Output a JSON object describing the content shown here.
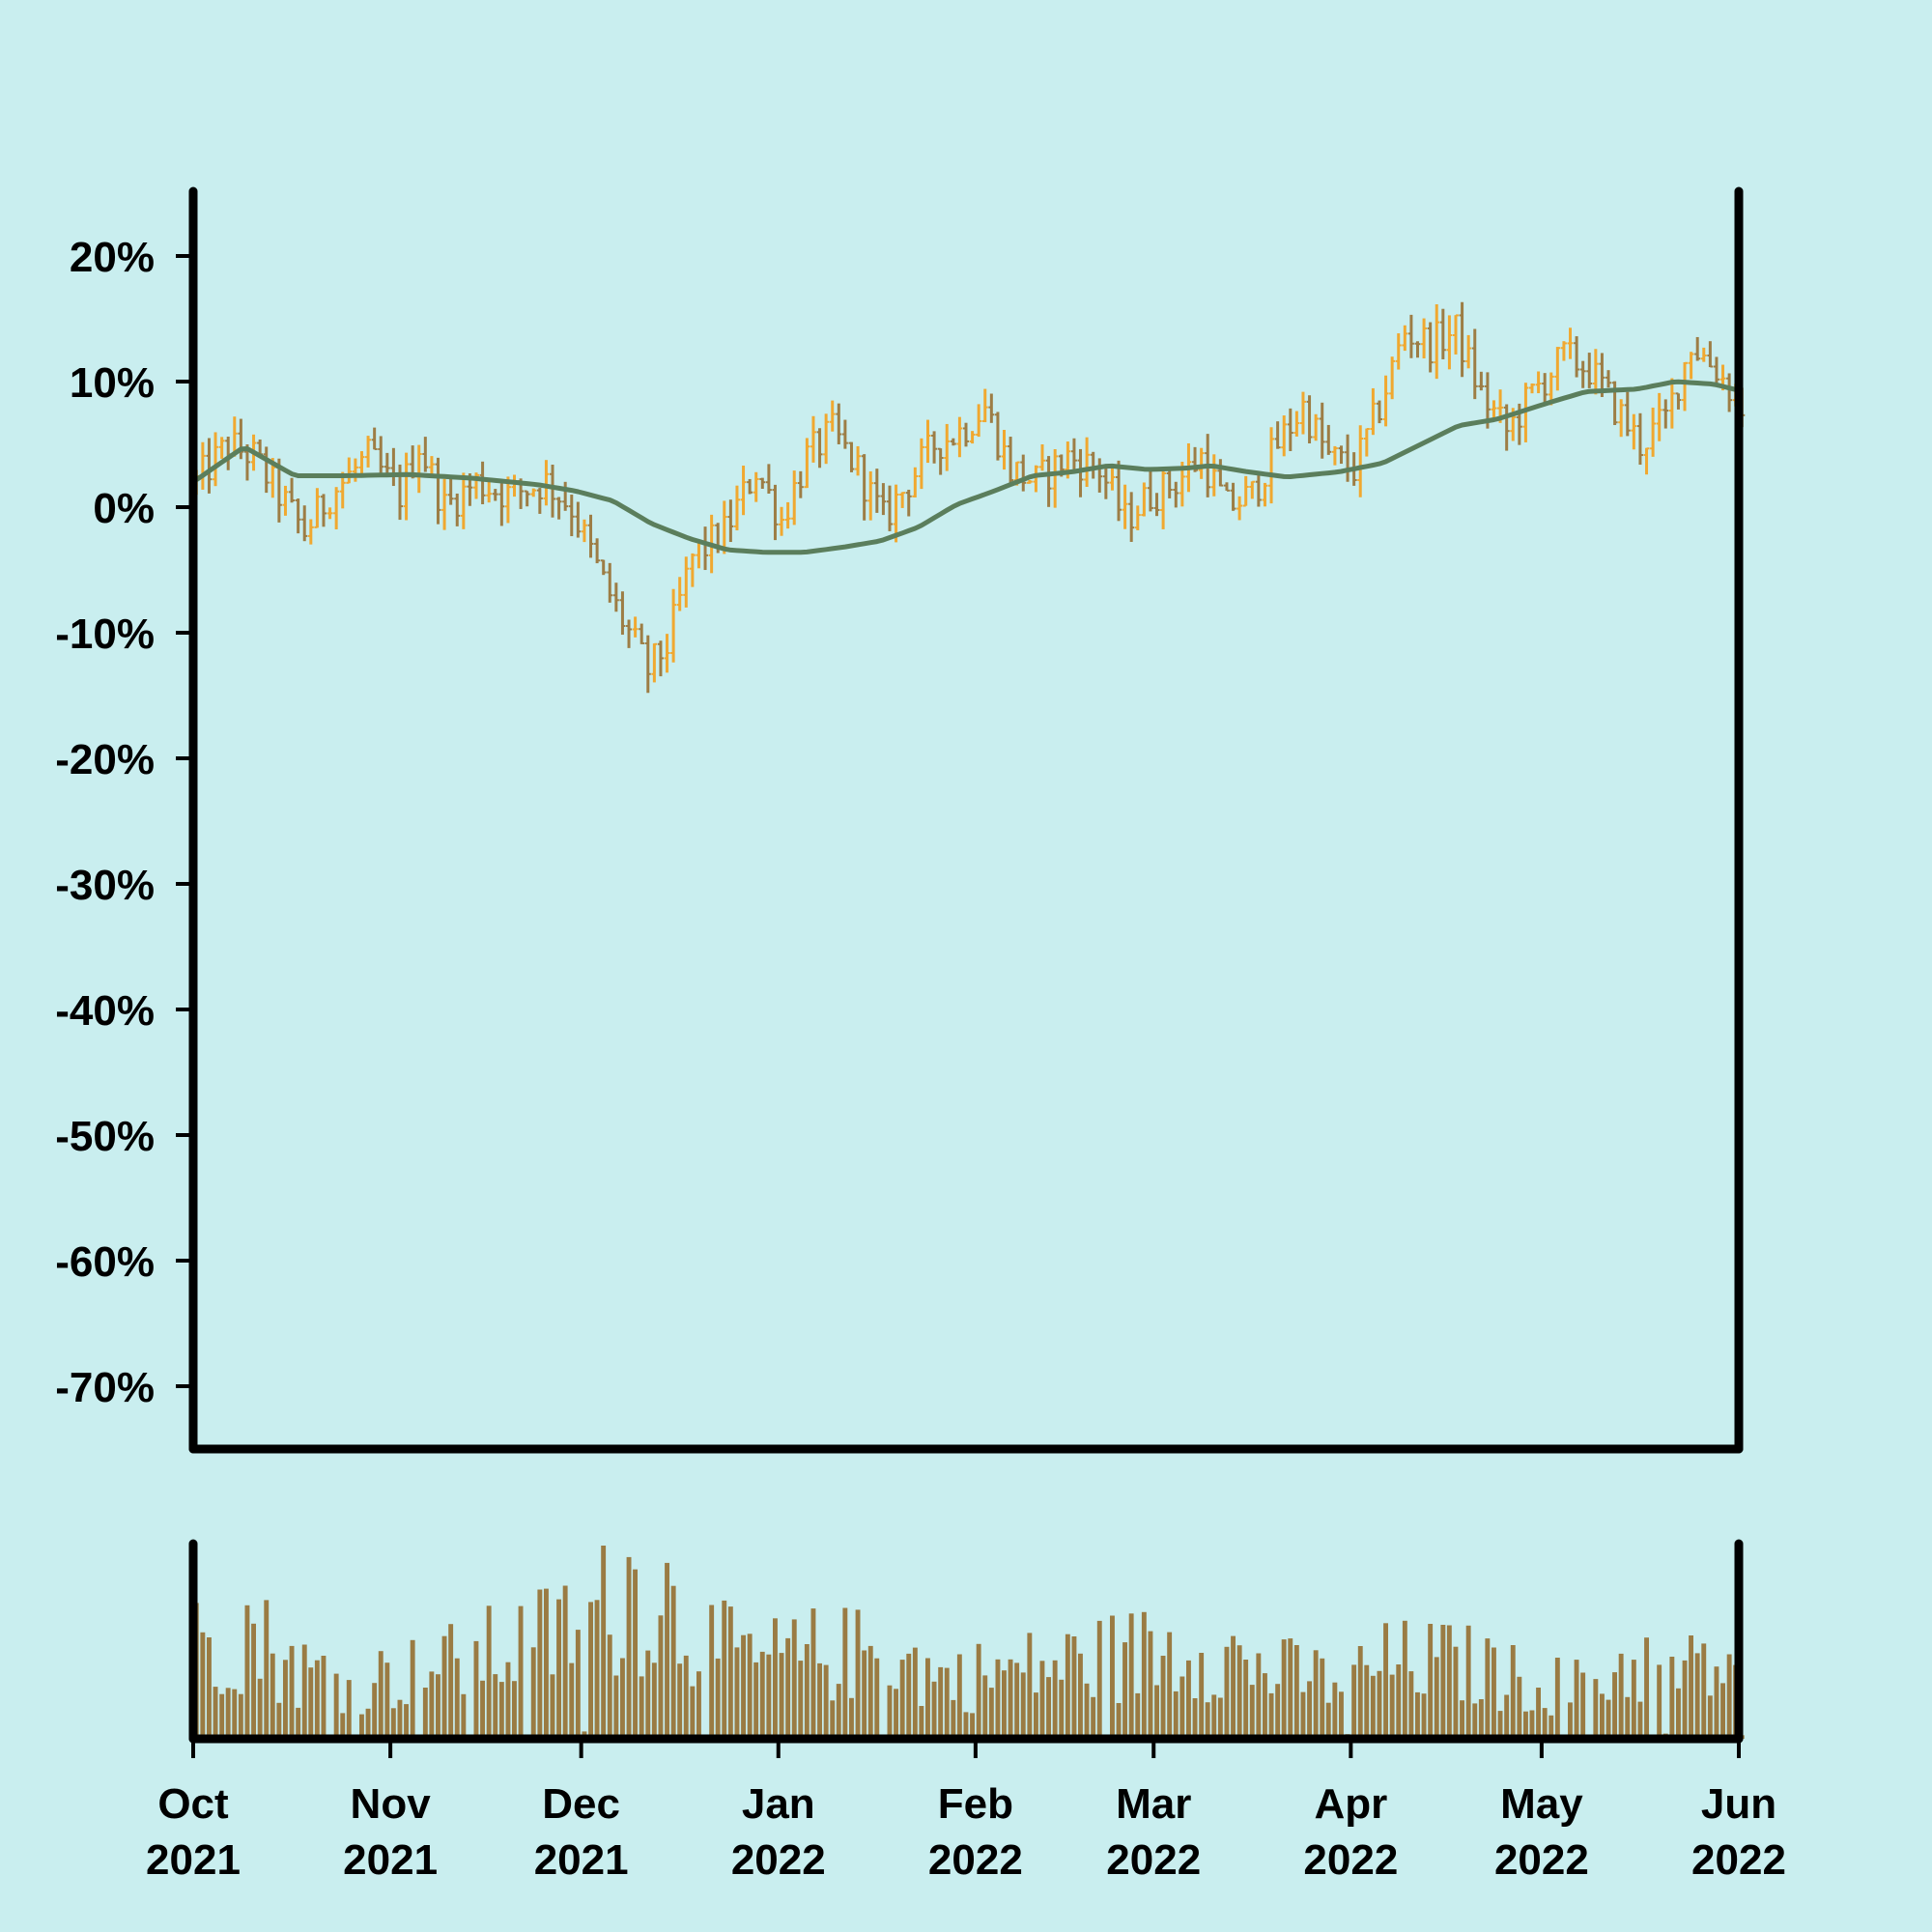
{
  "chart_data": {
    "type": "ohlc",
    "title": "",
    "xlabel": "",
    "ylabel": "",
    "ylim": [
      -75,
      25
    ],
    "y_ticks": [
      20,
      10,
      0,
      -10,
      -20,
      -30,
      -40,
      -50,
      -60,
      -70
    ],
    "y_tick_labels": [
      "20%",
      "10%",
      "0%",
      "-10%",
      "-20%",
      "-30%",
      "-40%",
      "-50%",
      "-60%",
      "-70%"
    ],
    "x_range": [
      "2021-10-01",
      "2022-06-01"
    ],
    "x_ticks": [
      {
        "date": "2021-10-01",
        "month": "Oct",
        "year": "2021"
      },
      {
        "date": "2021-11-01",
        "month": "Nov",
        "year": "2021"
      },
      {
        "date": "2021-12-01",
        "month": "Dec",
        "year": "2021"
      },
      {
        "date": "2022-01-01",
        "month": "Jan",
        "year": "2022"
      },
      {
        "date": "2022-02-01",
        "month": "Feb",
        "year": "2022"
      },
      {
        "date": "2022-03-01",
        "month": "Mar",
        "year": "2022"
      },
      {
        "date": "2022-04-01",
        "month": "Apr",
        "year": "2022"
      },
      {
        "date": "2022-05-01",
        "month": "May",
        "year": "2022"
      },
      {
        "date": "2022-06-01",
        "month": "Jun",
        "year": "2022"
      }
    ],
    "price_path": [
      [
        "2021-10-01",
        2
      ],
      [
        "2021-10-06",
        5
      ],
      [
        "2021-10-10",
        4
      ],
      [
        "2021-10-14",
        1
      ],
      [
        "2021-10-18",
        -2
      ],
      [
        "2021-10-22",
        1
      ],
      [
        "2021-10-28",
        4
      ],
      [
        "2021-11-02",
        1
      ],
      [
        "2021-11-05",
        5
      ],
      [
        "2021-11-09",
        0
      ],
      [
        "2021-11-14",
        2
      ],
      [
        "2021-11-19",
        1
      ],
      [
        "2021-11-25",
        2
      ],
      [
        "2021-11-29",
        0
      ],
      [
        "2021-12-04",
        -6
      ],
      [
        "2021-12-08",
        -10
      ],
      [
        "2021-12-11",
        -13
      ],
      [
        "2021-12-14",
        -11
      ],
      [
        "2021-12-18",
        -4
      ],
      [
        "2021-12-23",
        -2
      ],
      [
        "2021-12-28",
        3
      ],
      [
        "2022-01-01",
        -1
      ],
      [
        "2022-01-05",
        4
      ],
      [
        "2022-01-09",
        6
      ],
      [
        "2022-01-13",
        3
      ],
      [
        "2022-01-17",
        -1
      ],
      [
        "2022-01-21",
        2
      ],
      [
        "2022-01-25",
        5
      ],
      [
        "2022-01-29",
        6
      ],
      [
        "2022-02-02",
        8
      ],
      [
        "2022-02-06",
        3
      ],
      [
        "2022-02-10",
        2
      ],
      [
        "2022-02-15",
        4
      ],
      [
        "2022-02-20",
        3
      ],
      [
        "2022-02-24",
        -1
      ],
      [
        "2022-02-28",
        1
      ],
      [
        "2022-03-04",
        2
      ],
      [
        "2022-03-08",
        4
      ],
      [
        "2022-03-12",
        0
      ],
      [
        "2022-03-16",
        1
      ],
      [
        "2022-03-20",
        5
      ],
      [
        "2022-03-24",
        8
      ],
      [
        "2022-03-28",
        4
      ],
      [
        "2022-04-01",
        3
      ],
      [
        "2022-04-05",
        8
      ],
      [
        "2022-04-09",
        14
      ],
      [
        "2022-04-13",
        13
      ],
      [
        "2022-04-17",
        14
      ],
      [
        "2022-04-21",
        9
      ],
      [
        "2022-04-25",
        6
      ],
      [
        "2022-04-29",
        9
      ],
      [
        "2022-05-04",
        12
      ],
      [
        "2022-05-08",
        11
      ],
      [
        "2022-05-12",
        8
      ],
      [
        "2022-05-16",
        5
      ],
      [
        "2022-05-20",
        7
      ],
      [
        "2022-05-24",
        13
      ],
      [
        "2022-05-28",
        11
      ],
      [
        "2022-06-01",
        8
      ]
    ],
    "moving_average": [
      [
        "2021-10-01",
        2
      ],
      [
        "2021-10-09",
        4.8
      ],
      [
        "2021-10-17",
        2.5
      ],
      [
        "2021-10-25",
        2.5
      ],
      [
        "2021-11-04",
        2.6
      ],
      [
        "2021-11-14",
        2.3
      ],
      [
        "2021-11-24",
        1.8
      ],
      [
        "2021-11-30",
        1.3
      ],
      [
        "2021-12-06",
        0.5
      ],
      [
        "2021-12-12",
        -1.3
      ],
      [
        "2021-12-18",
        -2.5
      ],
      [
        "2021-12-24",
        -3.4
      ],
      [
        "2021-12-30",
        -3.6
      ],
      [
        "2022-01-05",
        -3.6
      ],
      [
        "2022-01-11",
        -3.2
      ],
      [
        "2022-01-17",
        -2.7
      ],
      [
        "2022-01-23",
        -1.6
      ],
      [
        "2022-01-29",
        0.2
      ],
      [
        "2022-02-04",
        1.3
      ],
      [
        "2022-02-10",
        2.5
      ],
      [
        "2022-02-16",
        2.8
      ],
      [
        "2022-02-22",
        3.3
      ],
      [
        "2022-02-28",
        3.0
      ],
      [
        "2022-03-06",
        3.1
      ],
      [
        "2022-03-10",
        3.3
      ],
      [
        "2022-03-16",
        2.8
      ],
      [
        "2022-03-22",
        2.4
      ],
      [
        "2022-03-30",
        2.8
      ],
      [
        "2022-04-06",
        3.5
      ],
      [
        "2022-04-12",
        5.0
      ],
      [
        "2022-04-18",
        6.5
      ],
      [
        "2022-04-24",
        7.0
      ],
      [
        "2022-05-02",
        8.3
      ],
      [
        "2022-05-08",
        9.2
      ],
      [
        "2022-05-16",
        9.4
      ],
      [
        "2022-05-22",
        10.0
      ],
      [
        "2022-05-28",
        9.8
      ],
      [
        "2022-06-01",
        9.3
      ]
    ],
    "volume_path": [
      [
        "2021-10-01",
        0.55
      ],
      [
        "2021-10-09",
        0.65
      ],
      [
        "2021-10-17",
        0.4
      ],
      [
        "2021-10-27",
        0.35
      ],
      [
        "2021-11-06",
        0.4
      ],
      [
        "2021-11-16",
        0.5
      ],
      [
        "2021-11-26",
        0.6
      ],
      [
        "2021-12-03",
        0.75
      ],
      [
        "2021-12-08",
        0.9
      ],
      [
        "2021-12-14",
        0.8
      ],
      [
        "2021-12-20",
        0.55
      ],
      [
        "2021-12-28",
        0.45
      ],
      [
        "2022-01-07",
        0.5
      ],
      [
        "2022-01-17",
        0.5
      ],
      [
        "2022-01-27",
        0.35
      ],
      [
        "2022-02-06",
        0.4
      ],
      [
        "2022-02-16",
        0.45
      ],
      [
        "2022-02-26",
        0.5
      ],
      [
        "2022-03-08",
        0.55
      ],
      [
        "2022-03-18",
        0.4
      ],
      [
        "2022-03-28",
        0.35
      ],
      [
        "2022-04-07",
        0.45
      ],
      [
        "2022-04-17",
        0.45
      ],
      [
        "2022-04-27",
        0.35
      ],
      [
        "2022-05-07",
        0.3
      ],
      [
        "2022-05-15",
        0.45
      ],
      [
        "2022-05-25",
        0.4
      ],
      [
        "2022-06-01",
        0.45
      ]
    ],
    "colors": {
      "background": "#c9eeef",
      "bar_up": "#f0a830",
      "bar_down": "#9d7d45",
      "moving_average": "#5b7e5c",
      "volume": "#9a7b43",
      "axis": "#000000"
    },
    "grid": false
  }
}
